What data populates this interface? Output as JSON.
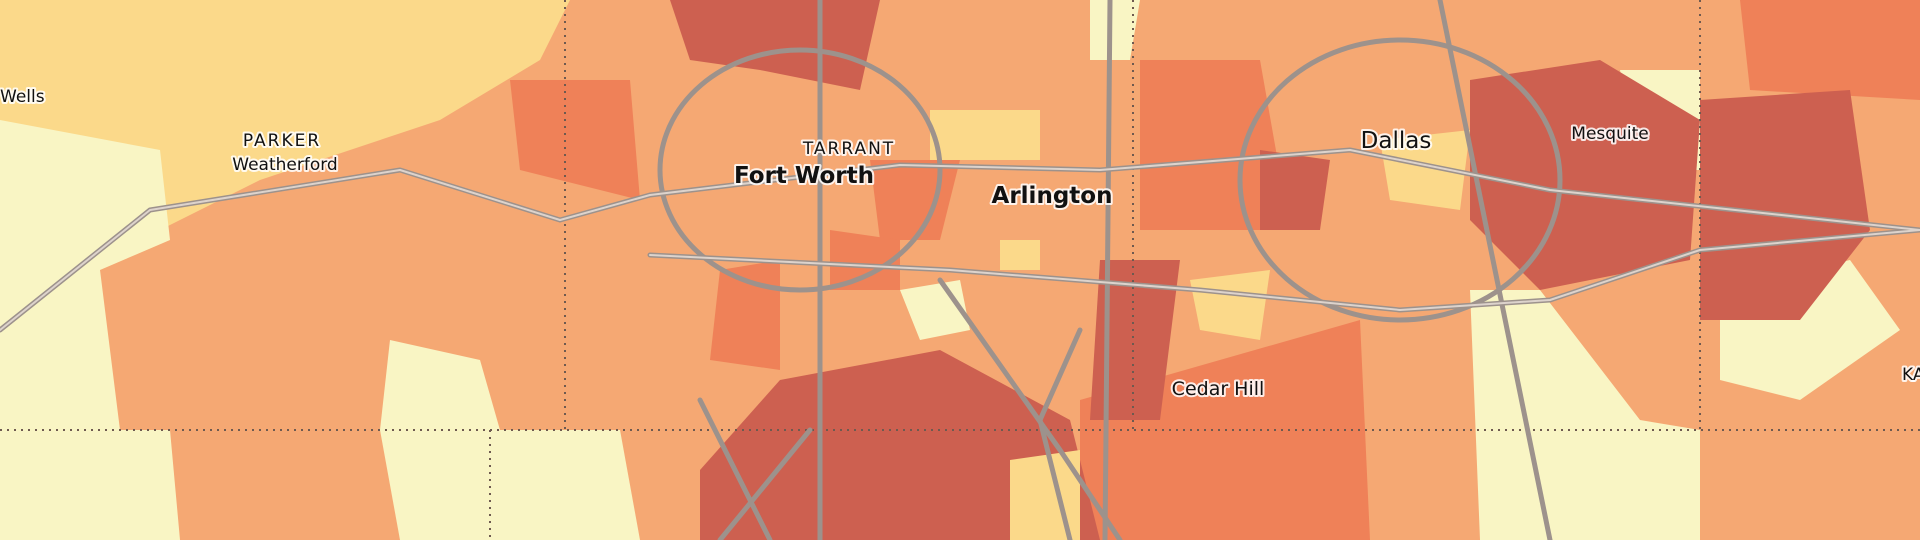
{
  "labels": [
    "Wells",
    "PARKER",
    "Weatherford",
    "TARRANT",
    "Fort Worth",
    "Arlington",
    "Dallas",
    "Mesquite",
    "Cedar Hill",
    "KA"
  ]
}
